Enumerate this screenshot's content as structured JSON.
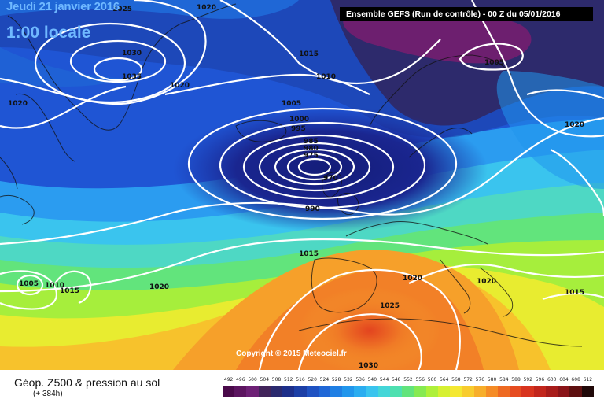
{
  "title": {
    "date": "Jeudi 21 janvier 2016",
    "time": "1:00 locale"
  },
  "run_info": "Ensemble GEFS  (Run de contrôle)  -  00 Z du 05/01/2016",
  "copyright": "Copyright © 2015 Meteociel.fr",
  "legend": {
    "title": "Géop. Z500 & pression au sol",
    "subtitle": "(+ 384h)",
    "scale_values": [
      "492",
      "496",
      "500",
      "504",
      "508",
      "512",
      "516",
      "520",
      "524",
      "528",
      "532",
      "536",
      "540",
      "544",
      "548",
      "552",
      "556",
      "560",
      "564",
      "568",
      "572",
      "576",
      "580",
      "584",
      "588",
      "592",
      "596",
      "600",
      "604",
      "608",
      "612"
    ],
    "scale_colors": [
      "#4a0a4a",
      "#5c1560",
      "#6d2075",
      "#41245a",
      "#2b2a6e",
      "#1d2f8a",
      "#1c3fa6",
      "#1f52c2",
      "#1f67d6",
      "#1f7fe4",
      "#2196ec",
      "#2badf0",
      "#3ac4ee",
      "#44d6d8",
      "#4ee0b0",
      "#62e47c",
      "#86ea52",
      "#aef03a",
      "#d6f032",
      "#f4e832",
      "#f8cc2e",
      "#f7ae2a",
      "#f58c26",
      "#ee6a22",
      "#e64c20",
      "#d8341e",
      "#c2261c",
      "#a81c1a",
      "#8a1418",
      "#5e1010",
      "#200808"
    ]
  },
  "isobar_labels": [
    "1025",
    "1020",
    "1030",
    "1035",
    "1020",
    "1015",
    "1010",
    "1005",
    "1000",
    "995",
    "985",
    "980",
    "975",
    "970",
    "990",
    "1005",
    "1020",
    "1020",
    "1015",
    "1020",
    "1020",
    "1020",
    "1025",
    "1005",
    "1010",
    "1015",
    "1030"
  ]
}
